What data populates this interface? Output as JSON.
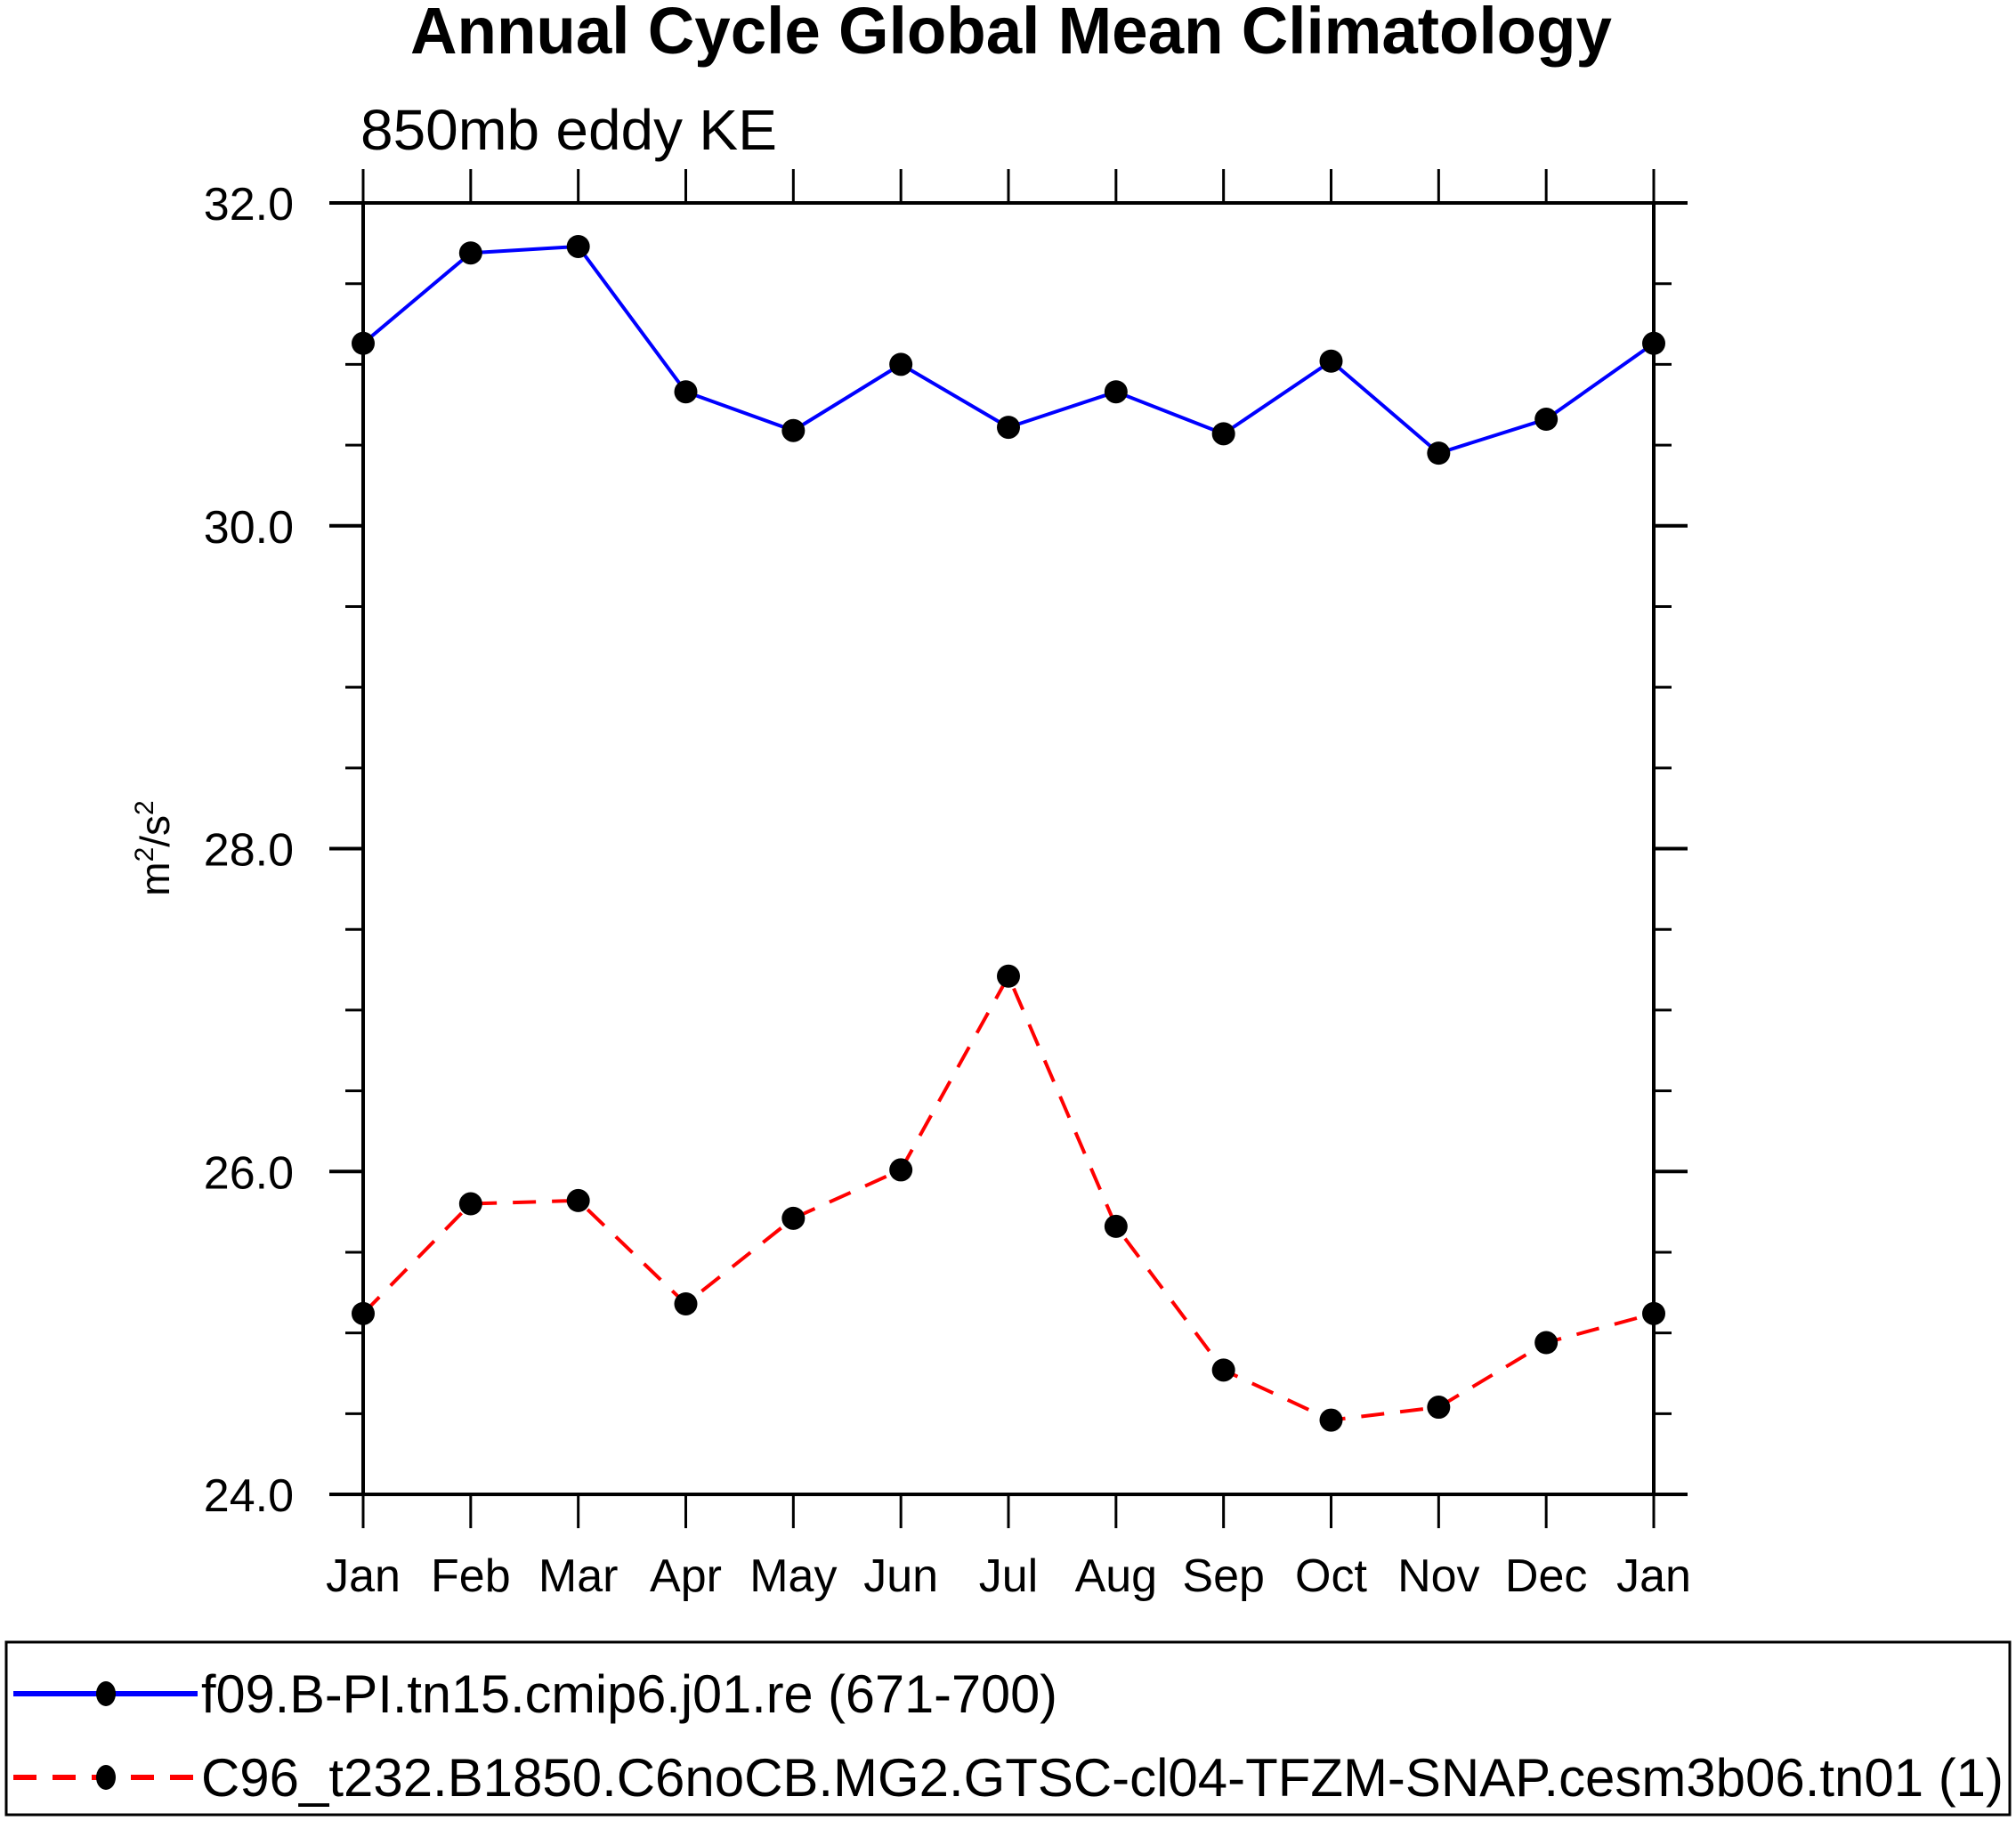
{
  "chart_data": {
    "type": "line",
    "title": "Annual Cycle Global Mean Climatology",
    "subtitle": "850mb eddy KE",
    "xlabel": "",
    "ylabel": "m2/s2",
    "ylabel_parts": {
      "base1": "m",
      "sup1": "2",
      "mid": "/s",
      "sup2": "2"
    },
    "categories": [
      "Jan",
      "Feb",
      "Mar",
      "Apr",
      "May",
      "Jun",
      "Jul",
      "Aug",
      "Sep",
      "Oct",
      "Nov",
      "Dec",
      "Jan"
    ],
    "ylim": [
      24.0,
      32.0
    ],
    "yticks_major": [
      24.0,
      26.0,
      28.0,
      30.0,
      32.0
    ],
    "yticks_major_labels": [
      "24.0",
      "26.0",
      "28.0",
      "30.0",
      "32.0"
    ],
    "yticks_minor_step": 0.5,
    "grid": false,
    "legend_position": "bottom",
    "series": [
      {
        "name": "f09.B-PI.tn15.cmip6.j01.re (671-700)",
        "color": "#0000ff",
        "line_style": "solid",
        "marker": "filled-circle",
        "marker_color": "#000000",
        "values": [
          31.13,
          31.69,
          31.73,
          30.83,
          30.59,
          31.0,
          30.61,
          30.83,
          30.57,
          31.02,
          30.45,
          30.66,
          31.13
        ]
      },
      {
        "name": "C96_t232.B1850.C6noCB.MG2.GTSC-cl04-TFZM-SNAP.cesm3b06.tn01 (1)",
        "color": "#ff0000",
        "line_style": "dashed",
        "marker": "filled-circle",
        "marker_color": "#000000",
        "values": [
          25.12,
          25.8,
          25.82,
          25.18,
          25.71,
          26.01,
          27.21,
          25.66,
          24.77,
          24.46,
          24.54,
          24.94,
          25.12
        ]
      }
    ]
  }
}
